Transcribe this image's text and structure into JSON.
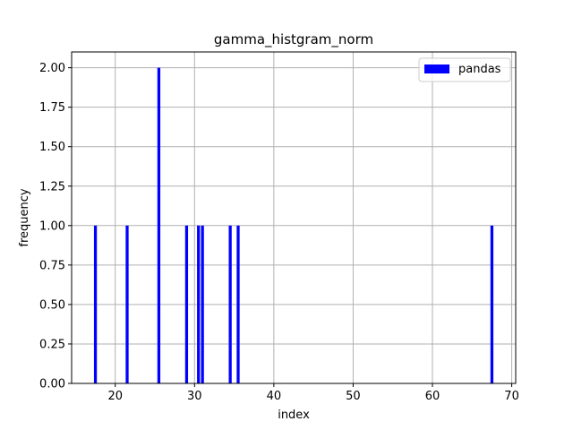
{
  "chart_data": {
    "type": "bar",
    "title": "gamma_histgram_norm",
    "xlabel": "index",
    "ylabel": "frequency",
    "xlim": [
      14.5,
      70.5
    ],
    "ylim": [
      0,
      2.1
    ],
    "xticks": [
      20,
      30,
      40,
      50,
      60,
      70
    ],
    "yticks": [
      0.0,
      0.25,
      0.5,
      0.75,
      1.0,
      1.25,
      1.5,
      1.75,
      2.0
    ],
    "ytick_labels": [
      "0.00",
      "0.25",
      "0.50",
      "0.75",
      "1.00",
      "1.25",
      "1.50",
      "1.75",
      "2.00"
    ],
    "bin_width": 0.37,
    "grid": true,
    "legend_position": "top-right",
    "series": [
      {
        "name": "pandas",
        "color": "#0000ff",
        "x": [
          17.5,
          21.5,
          25.5,
          29.0,
          30.5,
          31.0,
          34.5,
          35.5,
          67.5
        ],
        "values": [
          1,
          1,
          2,
          1,
          1,
          1,
          1,
          1,
          1
        ]
      }
    ]
  }
}
